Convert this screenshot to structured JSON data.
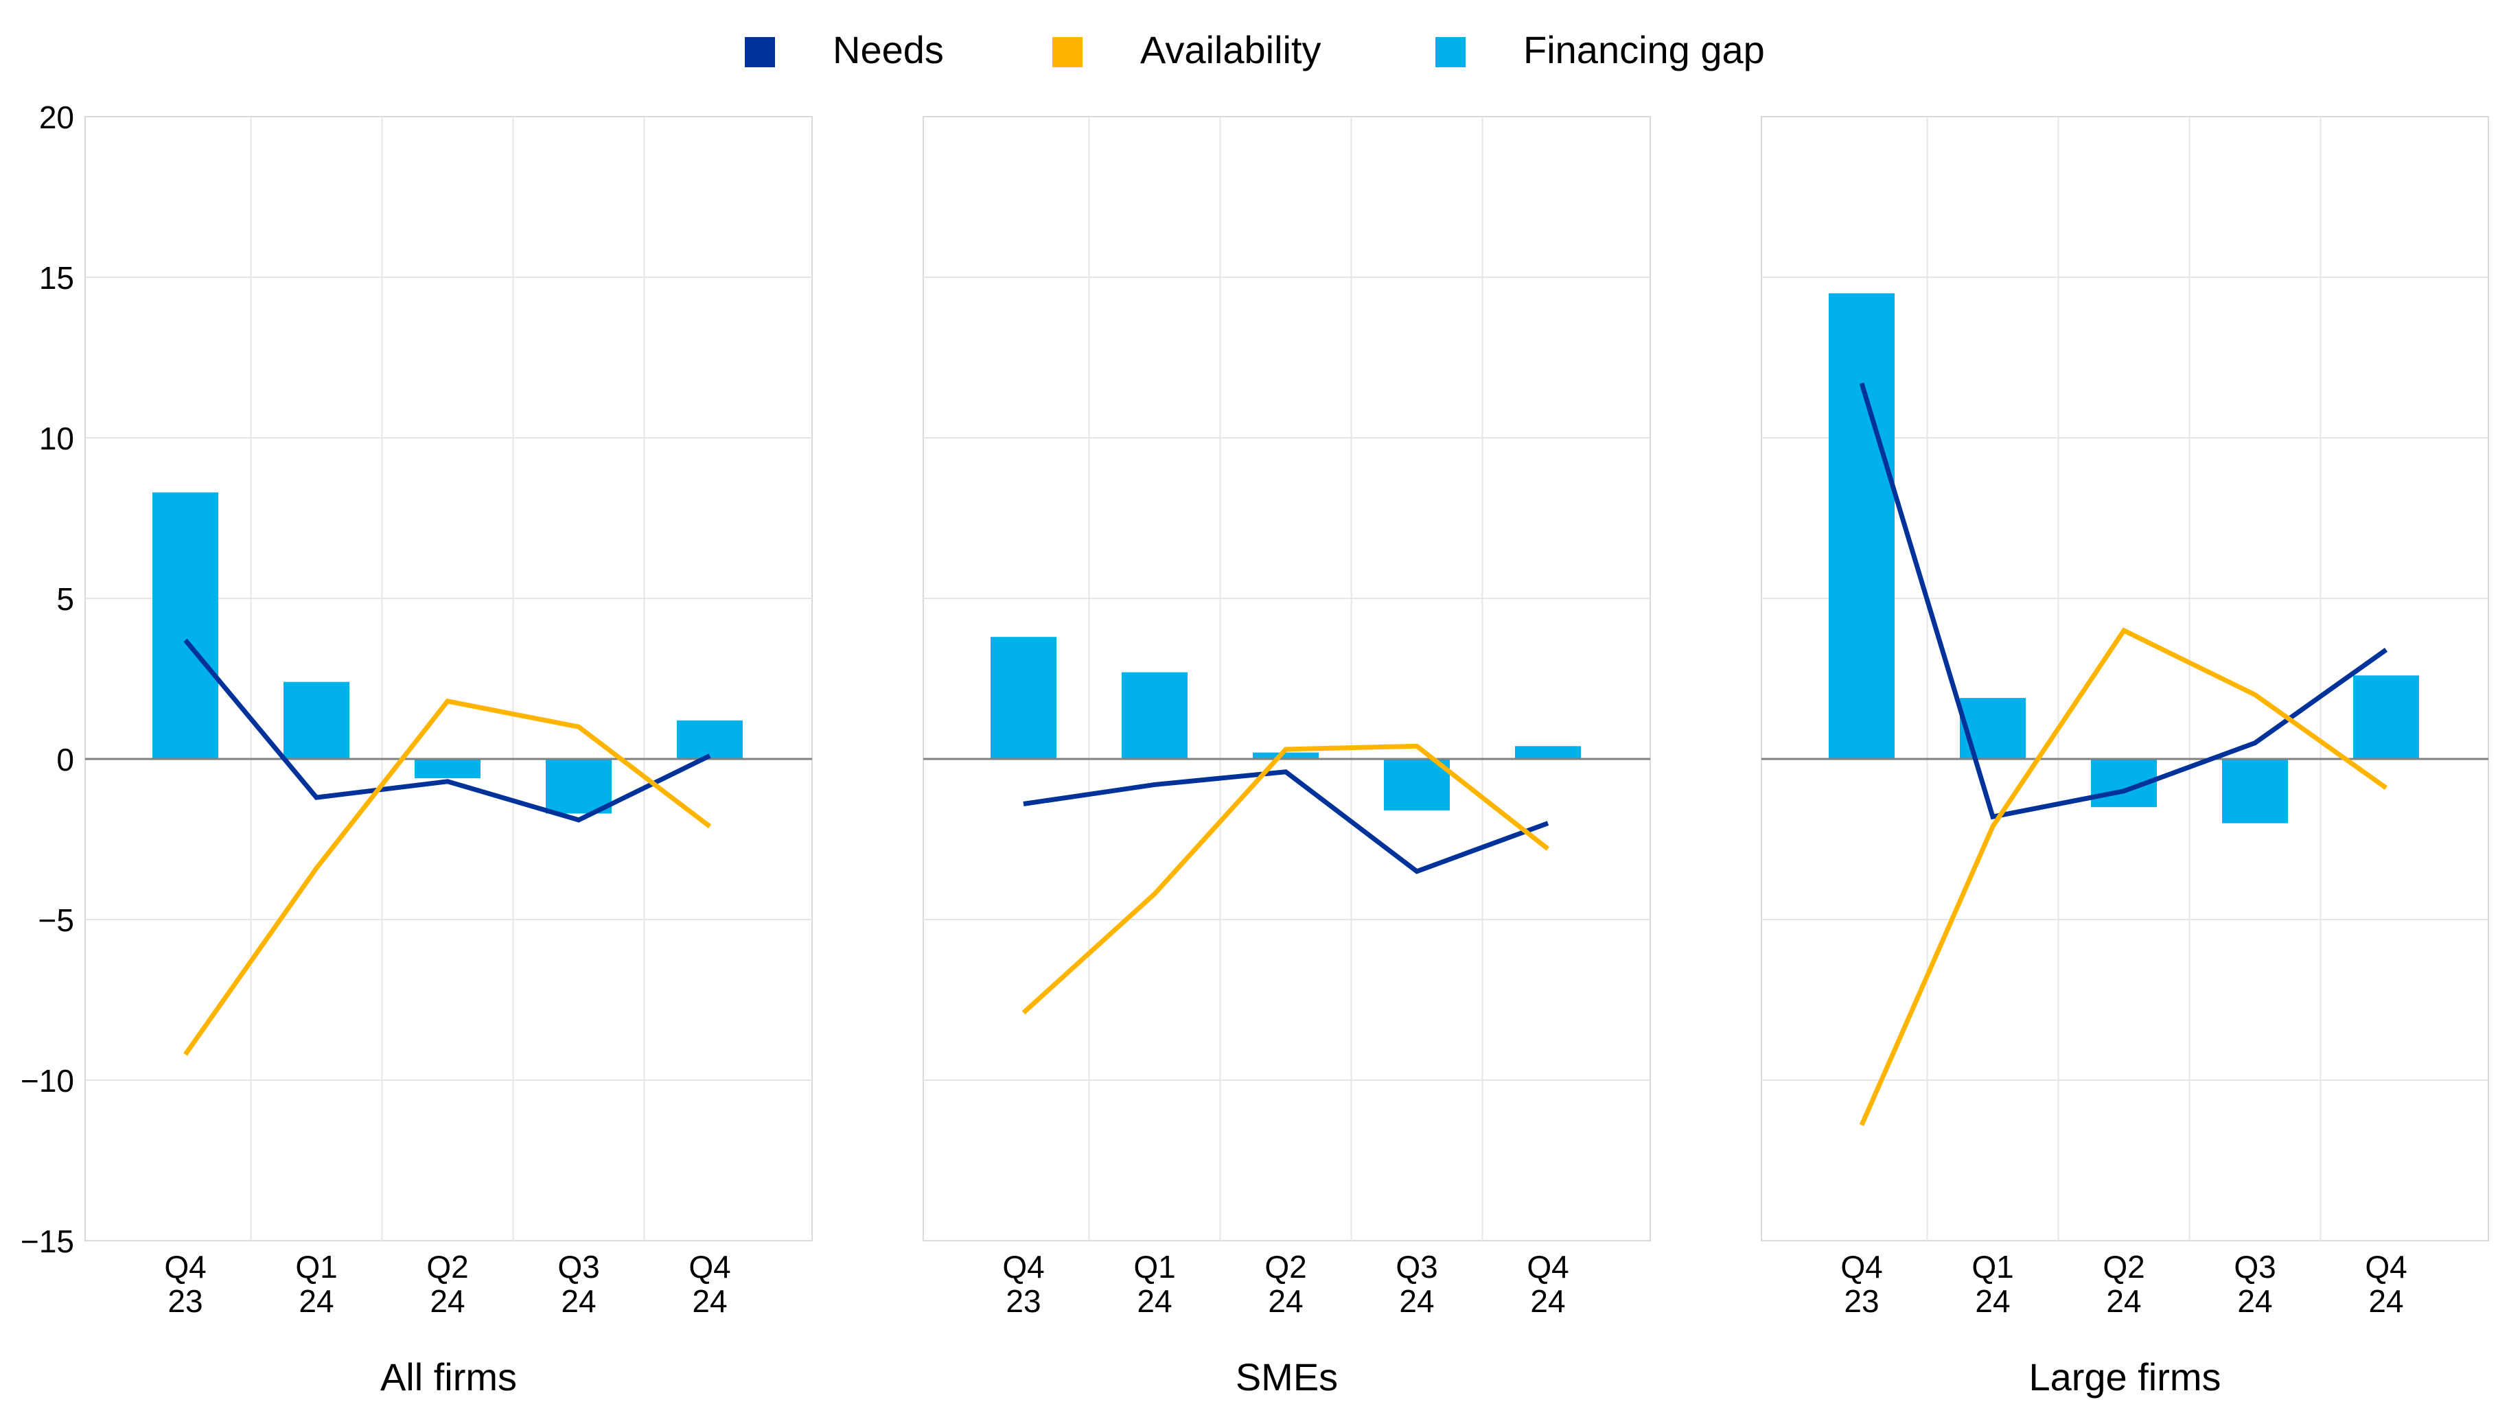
{
  "legend": {
    "items": [
      {
        "label": "Needs",
        "color": "#003299"
      },
      {
        "label": "Availability",
        "color": "#FFB400"
      },
      {
        "label": "Financing gap",
        "color": "#00B1EA"
      }
    ]
  },
  "chart_data": {
    "type": "bar+line",
    "ylim": [
      -15,
      20
    ],
    "yticks": [
      20,
      15,
      10,
      5,
      0,
      -5,
      -10,
      -15
    ],
    "ytick_labels": [
      "20",
      "15",
      "10",
      "5",
      "0",
      "−5",
      "−10",
      "−15"
    ],
    "grid": true,
    "legend_position": "top",
    "categories": [
      [
        "Q4",
        "23"
      ],
      [
        "Q1",
        "24"
      ],
      [
        "Q2",
        "24"
      ],
      [
        "Q3",
        "24"
      ],
      [
        "Q4",
        "24"
      ]
    ],
    "panels": [
      {
        "title": "All firms",
        "series": [
          {
            "name": "Financing gap",
            "kind": "bar",
            "values": [
              8.3,
              2.4,
              -0.6,
              -1.7,
              1.2
            ]
          },
          {
            "name": "Needs",
            "kind": "line",
            "values": [
              3.7,
              -1.2,
              -0.7,
              -1.9,
              0.1
            ]
          },
          {
            "name": "Availability",
            "kind": "line",
            "values": [
              -9.2,
              -3.4,
              1.8,
              1.0,
              -2.1
            ]
          }
        ]
      },
      {
        "title": "SMEs",
        "series": [
          {
            "name": "Financing gap",
            "kind": "bar",
            "values": [
              3.8,
              2.7,
              0.2,
              -1.6,
              0.4
            ]
          },
          {
            "name": "Needs",
            "kind": "line",
            "values": [
              -1.4,
              -0.8,
              -0.4,
              -3.5,
              -2.0
            ]
          },
          {
            "name": "Availability",
            "kind": "line",
            "values": [
              -7.9,
              -4.2,
              0.3,
              0.4,
              -2.8
            ]
          }
        ]
      },
      {
        "title": "Large firms",
        "series": [
          {
            "name": "Financing gap",
            "kind": "bar",
            "values": [
              14.5,
              1.9,
              -1.5,
              -2.0,
              2.6
            ]
          },
          {
            "name": "Needs",
            "kind": "line",
            "values": [
              11.7,
              -1.8,
              -1.0,
              0.5,
              3.4
            ]
          },
          {
            "name": "Availability",
            "kind": "line",
            "values": [
              -11.4,
              -2.1,
              4.0,
              2.0,
              -0.9
            ]
          }
        ]
      }
    ]
  }
}
